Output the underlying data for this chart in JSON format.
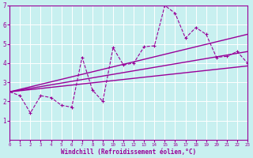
{
  "xlabel": "Windchill (Refroidissement éolien,°C)",
  "background_color": "#c8f0f0",
  "grid_color": "#ffffff",
  "line_color": "#990099",
  "xlim": [
    0,
    23
  ],
  "ylim": [
    0,
    7
  ],
  "xticks": [
    0,
    1,
    2,
    3,
    4,
    5,
    6,
    7,
    8,
    9,
    10,
    11,
    12,
    13,
    14,
    15,
    16,
    17,
    18,
    19,
    20,
    21,
    22,
    23
  ],
  "yticks": [
    1,
    2,
    3,
    4,
    5,
    6,
    7
  ],
  "data_x": [
    0,
    1,
    2,
    3,
    4,
    5,
    6,
    7,
    8,
    9,
    10,
    11,
    12,
    13,
    14,
    15,
    16,
    17,
    18,
    19,
    20,
    21,
    22,
    23
  ],
  "data_y": [
    2.5,
    2.3,
    1.4,
    2.3,
    2.2,
    1.8,
    1.7,
    4.3,
    2.6,
    2.0,
    4.8,
    3.9,
    4.0,
    4.85,
    4.9,
    7.0,
    6.6,
    5.3,
    5.85,
    5.5,
    4.3,
    4.35,
    4.6,
    4.0
  ],
  "trend1_x": [
    0,
    23
  ],
  "trend1_y": [
    2.5,
    3.85
  ],
  "trend2_x": [
    0,
    23
  ],
  "trend2_y": [
    2.5,
    5.5
  ],
  "trend3_x": [
    0,
    23
  ],
  "trend3_y": [
    2.5,
    4.6
  ]
}
